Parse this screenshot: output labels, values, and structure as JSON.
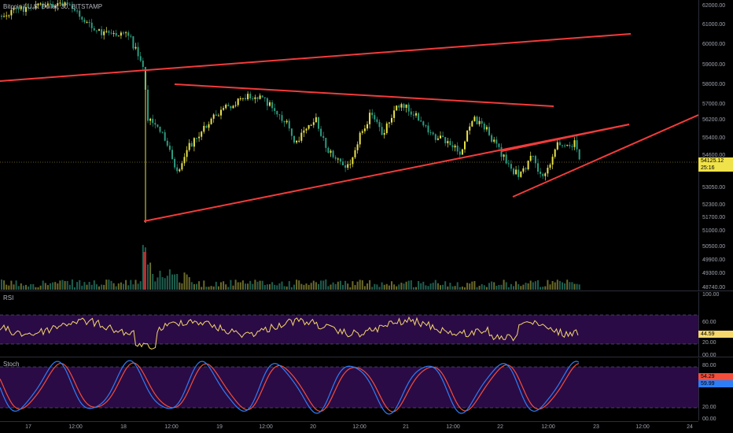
{
  "chart": {
    "symbol_title": "Bitcoin / U.S. Dollar, 30, BITSTAMP",
    "price_axis_ticks": [
      "62000.00",
      "61000.00",
      "60000.00",
      "59000.00",
      "58000.00",
      "57000.00",
      "56200.00",
      "55400.00",
      "54600.00",
      "53050.00",
      "52300.00",
      "51700.00",
      "51000.00",
      "50500.00",
      "49900.00",
      "49300.00",
      "48740.00"
    ],
    "last_price": "54125.12",
    "countdown": "25:16",
    "time_axis_ticks": [
      "17",
      "12:00",
      "18",
      "12:00",
      "19",
      "12:00",
      "20",
      "12:00",
      "21",
      "12:00",
      "22",
      "12:00",
      "23",
      "12:00",
      "24"
    ],
    "colors": {
      "up": "#e8e24a",
      "down": "#2c9c80",
      "trend": "#f23b3b",
      "rsi_line": "#f5d76e",
      "stoch_k": "#2d7df6",
      "stoch_d": "#f24e3b",
      "band_fill": "#2b0b45"
    }
  },
  "rsi": {
    "label": "RSI",
    "ticks": [
      "100.00",
      "60.00",
      "20.00",
      "00.00"
    ],
    "current_value": "44.59"
  },
  "stoch": {
    "label": "Stoch",
    "ticks": [
      "80.00",
      "20.00",
      "00.00"
    ],
    "k_value": "59.99",
    "d_value": "54.29"
  },
  "chart_data": {
    "type": "line",
    "title": "Bitcoin / U.S. Dollar, 30, BITSTAMP",
    "x": [
      "17",
      "12:00",
      "18",
      "12:00",
      "19",
      "12:00",
      "20",
      "12:00",
      "21",
      "12:00",
      "22",
      "12:00"
    ],
    "series": [
      {
        "values": [
          62300,
          61200,
          59000,
          56100,
          57000,
          57500,
          56400,
          55800,
          57200,
          56000,
          53400,
          54100
        ]
      }
    ],
    "ylim": [
      48500,
      62500
    ],
    "grid": false
  }
}
